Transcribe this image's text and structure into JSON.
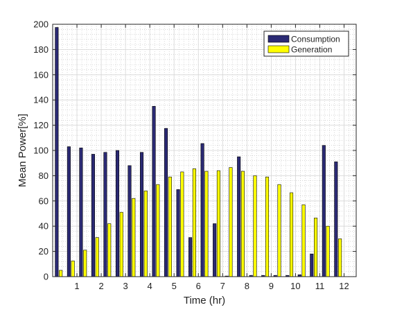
{
  "chart_data": {
    "type": "bar",
    "xlabel": "Time (hr)",
    "ylabel": "Mean Power[%]",
    "ylim": [
      0,
      200
    ],
    "yticks": [
      0,
      20,
      40,
      60,
      80,
      100,
      120,
      140,
      160,
      180,
      200
    ],
    "xlim": [
      0,
      12.5
    ],
    "xticks": [
      1,
      2,
      3,
      4,
      5,
      6,
      7,
      8,
      9,
      10,
      11,
      12
    ],
    "grid": true,
    "legend_position": "top-right",
    "x": [
      0.25,
      0.75,
      1.25,
      1.75,
      2.25,
      2.75,
      3.25,
      3.75,
      4.25,
      4.75,
      5.25,
      5.75,
      6.25,
      6.75,
      7.25,
      7.75,
      8.25,
      8.75,
      9.25,
      9.75,
      10.25,
      10.75,
      11.25,
      11.75
    ],
    "series": [
      {
        "name": "Consumption",
        "color": "#2b2a74",
        "values": [
          197.5,
          103,
          102,
          97,
          98.5,
          100,
          88,
          98.5,
          135,
          117.5,
          69,
          31,
          105.5,
          42,
          0.5,
          95,
          1,
          1,
          1,
          1,
          1.5,
          18,
          104,
          91
        ]
      },
      {
        "name": "Generation",
        "color": "#ffff00",
        "values": [
          5,
          12.5,
          21,
          31,
          42,
          51,
          62,
          68,
          73,
          79,
          83,
          85.5,
          83.5,
          84,
          86.5,
          83.5,
          80,
          79,
          73,
          66.5,
          57,
          46.5,
          40,
          30
        ]
      }
    ]
  }
}
